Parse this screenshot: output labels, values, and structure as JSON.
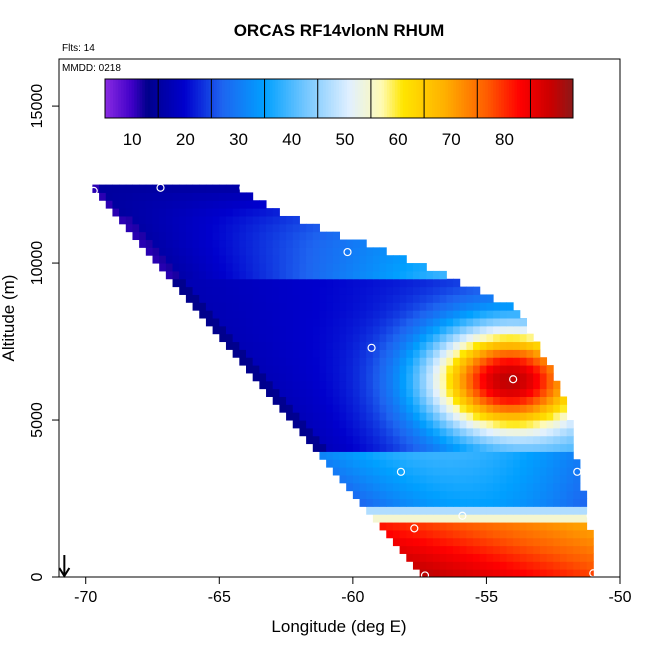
{
  "chart_data": {
    "type": "heatmap",
    "title": "ORCAS RF14vlonN RHUM",
    "subtitle_flights": "Flts: 14",
    "subtitle_date": "MMDD: 0218",
    "xlabel": "Longitude (deg E)",
    "ylabel": "Altitude (m)",
    "xlim": [
      -71,
      -50
    ],
    "ylim": [
      0,
      16500
    ],
    "x_ticks": [
      -70,
      -65,
      -60,
      -55,
      -50
    ],
    "y_ticks": [
      0,
      5000,
      10000,
      15000
    ],
    "colorbar": {
      "range": [
        0,
        88
      ],
      "ticks": [
        10,
        20,
        30,
        40,
        50,
        60,
        70,
        80
      ],
      "placement": "top"
    },
    "grid": false,
    "cell": {
      "dlon": 0.25,
      "dalt": 250
    },
    "region": {
      "top_alt": 12500,
      "left_boundary_at_top": -69.8,
      "left_boundary_at_bottom": -57.5,
      "right_boundary": [
        {
          "alt": 12500,
          "lon": -64.6
        },
        {
          "alt": 11500,
          "lon": -62.5
        },
        {
          "alt": 10000,
          "lon": -57.5
        },
        {
          "alt": 8500,
          "lon": -53.8
        },
        {
          "alt": 7000,
          "lon": -52.8
        },
        {
          "alt": 5500,
          "lon": -52.0
        },
        {
          "alt": 3500,
          "lon": -51.6
        },
        {
          "alt": 2200,
          "lon": -51.2
        },
        {
          "alt": 0,
          "lon": -51.0
        }
      ]
    },
    "moist_core": {
      "lon": -54.2,
      "alt": 6300
    },
    "observation_points": [
      {
        "lon": -69.7,
        "alt": 12300
      },
      {
        "lon": -67.2,
        "alt": 12400
      },
      {
        "lon": -64.1,
        "alt": 12400
      },
      {
        "lon": -60.2,
        "alt": 10350
      },
      {
        "lon": -59.3,
        "alt": 7300
      },
      {
        "lon": -54.0,
        "alt": 6300
      },
      {
        "lon": -58.2,
        "alt": 3350
      },
      {
        "lon": -51.6,
        "alt": 3350
      },
      {
        "lon": -57.7,
        "alt": 1550
      },
      {
        "lon": -55.9,
        "alt": 1950
      },
      {
        "lon": -51.1,
        "alt": 1950
      },
      {
        "lon": -57.3,
        "alt": 50
      },
      {
        "lon": -51.0,
        "alt": 120
      }
    ],
    "marker": {
      "type": "down-arrow",
      "lon": -70.8,
      "alt": 700
    }
  }
}
